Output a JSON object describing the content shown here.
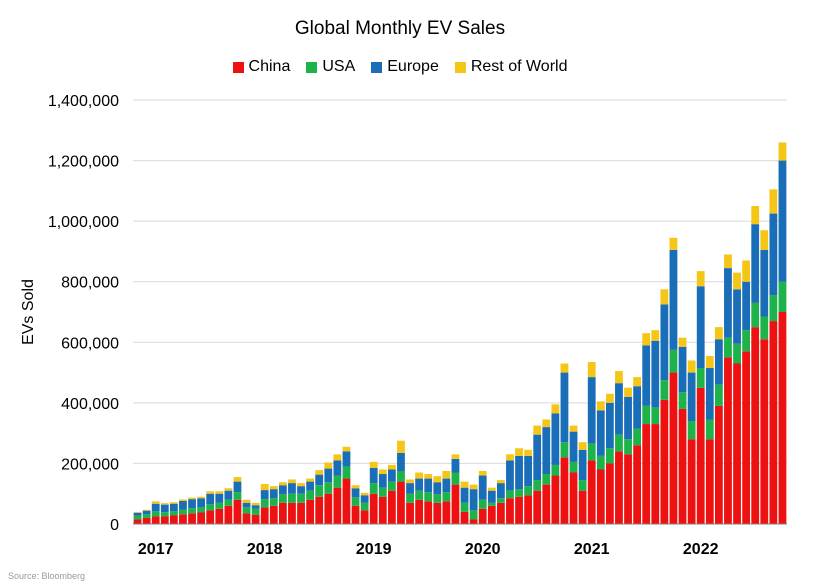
{
  "chart_data": {
    "type": "bar",
    "stacked": true,
    "title": "Global Monthly EV Sales",
    "ylabel": "EVs Sold",
    "xlabel": "",
    "ylim": [
      0,
      1400000
    ],
    "yticks": [
      0,
      200000,
      400000,
      600000,
      800000,
      1000000,
      1200000,
      1400000
    ],
    "ytick_labels": [
      "0",
      "200,000",
      "400,000",
      "600,000",
      "800,000",
      "1,000,000",
      "1,200,000",
      "1,400,000"
    ],
    "x_year_labels": [
      "2017",
      "2018",
      "2019",
      "2020",
      "2021",
      "2022"
    ],
    "grid": "horizontal",
    "legend_position": "top-center",
    "categories": [
      "2017-01",
      "2017-02",
      "2017-03",
      "2017-04",
      "2017-05",
      "2017-06",
      "2017-07",
      "2017-08",
      "2017-09",
      "2017-10",
      "2017-11",
      "2017-12",
      "2018-01",
      "2018-02",
      "2018-03",
      "2018-04",
      "2018-05",
      "2018-06",
      "2018-07",
      "2018-08",
      "2018-09",
      "2018-10",
      "2018-11",
      "2018-12",
      "2019-01",
      "2019-02",
      "2019-03",
      "2019-04",
      "2019-05",
      "2019-06",
      "2019-07",
      "2019-08",
      "2019-09",
      "2019-10",
      "2019-11",
      "2019-12",
      "2020-01",
      "2020-02",
      "2020-03",
      "2020-04",
      "2020-05",
      "2020-06",
      "2020-07",
      "2020-08",
      "2020-09",
      "2020-10",
      "2020-11",
      "2020-12",
      "2021-01",
      "2021-02",
      "2021-03",
      "2021-04",
      "2021-05",
      "2021-06",
      "2021-07",
      "2021-08",
      "2021-09",
      "2021-10",
      "2021-11",
      "2021-12",
      "2022-01",
      "2022-02",
      "2022-03",
      "2022-04",
      "2022-05",
      "2022-06",
      "2022-07",
      "2022-08",
      "2022-09",
      "2022-10",
      "2022-11",
      "2022-12"
    ],
    "series": [
      {
        "name": "China",
        "color": "#ee1111",
        "values": [
          15000,
          20000,
          25000,
          25000,
          28000,
          32000,
          35000,
          38000,
          45000,
          50000,
          60000,
          80000,
          35000,
          30000,
          55000,
          60000,
          70000,
          70000,
          70000,
          80000,
          90000,
          100000,
          120000,
          150000,
          60000,
          45000,
          100000,
          90000,
          110000,
          140000,
          70000,
          80000,
          75000,
          70000,
          75000,
          130000,
          40000,
          15000,
          50000,
          60000,
          70000,
          85000,
          90000,
          95000,
          110000,
          130000,
          160000,
          220000,
          170000,
          110000,
          210000,
          180000,
          200000,
          240000,
          230000,
          260000,
          330000,
          330000,
          410000,
          500000,
          380000,
          280000,
          450000,
          280000,
          390000,
          550000,
          530000,
          570000,
          650000,
          610000,
          670000,
          700000
        ]
      },
      {
        "name": "USA",
        "color": "#1db34a",
        "values": [
          12000,
          12000,
          17000,
          14000,
          14000,
          16000,
          17000,
          17000,
          20000,
          20000,
          20000,
          25000,
          20000,
          20000,
          27000,
          25000,
          28000,
          30000,
          30000,
          30000,
          38000,
          38000,
          40000,
          40000,
          28000,
          25000,
          35000,
          30000,
          30000,
          35000,
          30000,
          30000,
          30000,
          28000,
          30000,
          40000,
          30000,
          30000,
          30000,
          10000,
          15000,
          25000,
          25000,
          30000,
          35000,
          35000,
          35000,
          50000,
          35000,
          35000,
          55000,
          45000,
          50000,
          55000,
          50000,
          55000,
          60000,
          55000,
          65000,
          75000,
          55000,
          60000,
          65000,
          65000,
          70000,
          65000,
          65000,
          70000,
          80000,
          75000,
          85000,
          100000
        ]
      },
      {
        "name": "Europe",
        "color": "#1a6eb8",
        "values": [
          10000,
          12000,
          25000,
          25000,
          25000,
          28000,
          30000,
          30000,
          35000,
          30000,
          30000,
          35000,
          15000,
          12000,
          30000,
          30000,
          30000,
          35000,
          25000,
          30000,
          35000,
          45000,
          50000,
          50000,
          30000,
          25000,
          50000,
          45000,
          40000,
          60000,
          35000,
          40000,
          45000,
          40000,
          45000,
          45000,
          50000,
          70000,
          80000,
          40000,
          50000,
          100000,
          110000,
          100000,
          150000,
          155000,
          170000,
          230000,
          100000,
          100000,
          220000,
          150000,
          150000,
          170000,
          140000,
          140000,
          200000,
          220000,
          250000,
          330000,
          150000,
          160000,
          270000,
          170000,
          150000,
          230000,
          180000,
          160000,
          260000,
          220000,
          270000,
          400000
        ]
      },
      {
        "name": "Rest of World",
        "color": "#f5c518",
        "values": [
          3000,
          3000,
          8000,
          5000,
          5000,
          5000,
          5000,
          5000,
          8000,
          8000,
          8000,
          15000,
          10000,
          8000,
          20000,
          10000,
          10000,
          12000,
          10000,
          10000,
          15000,
          20000,
          20000,
          15000,
          10000,
          8000,
          20000,
          15000,
          15000,
          40000,
          12000,
          20000,
          15000,
          20000,
          25000,
          15000,
          20000,
          15000,
          15000,
          10000,
          10000,
          20000,
          25000,
          20000,
          30000,
          25000,
          30000,
          30000,
          20000,
          25000,
          50000,
          30000,
          30000,
          40000,
          30000,
          30000,
          40000,
          35000,
          50000,
          40000,
          30000,
          40000,
          50000,
          40000,
          40000,
          45000,
          55000,
          70000,
          60000,
          65000,
          80000,
          60000
        ]
      }
    ]
  },
  "source_text": "Source: Bloomberg"
}
